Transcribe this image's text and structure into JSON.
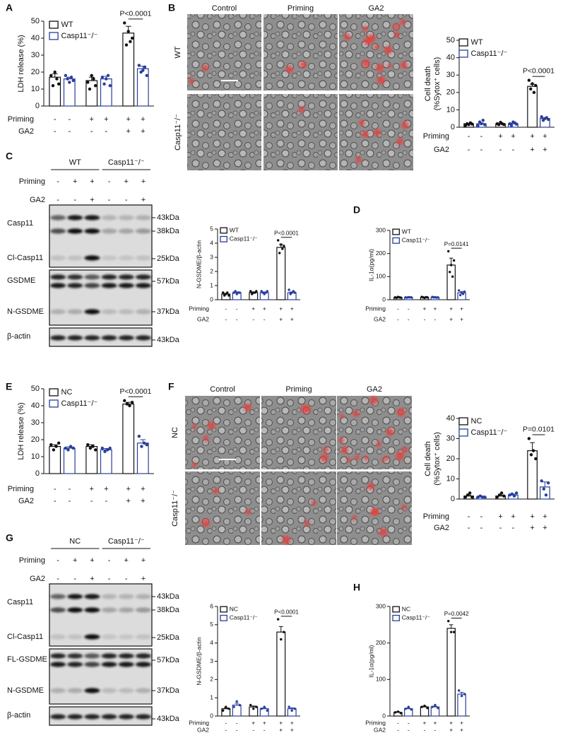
{
  "chart_data": [
    {
      "type": "bar",
      "ylabel": "LDH release (%)",
      "ylim": [
        0,
        50
      ],
      "yticks": [
        0,
        10,
        20,
        30,
        40,
        50
      ],
      "annotation": "P<0.0001",
      "series": [
        {
          "name": "WT",
          "color": "#111111",
          "values": [
            17,
            15,
            43
          ],
          "errors": [
            2,
            2,
            4
          ],
          "points": [
            [
              18,
              12,
              20,
              16,
              13
            ],
            [
              14,
              10,
              18,
              16,
              12
            ],
            [
              49,
              36,
              44,
              38,
              40
            ]
          ]
        },
        {
          "name": "Casp11⁻/⁻",
          "color": "#2a3f9a",
          "values": [
            16,
            16,
            22
          ],
          "errors": [
            1,
            1.5,
            1.5
          ],
          "points": [
            [
              18,
              16,
              14,
              17,
              15
            ],
            [
              17,
              13,
              16,
              18,
              12
            ],
            [
              24,
              20,
              21,
              23,
              18
            ]
          ]
        }
      ],
      "conditions": [
        {
          "name": "Priming",
          "labels": [
            "-",
            "-",
            "+",
            "+",
            "+",
            "+"
          ]
        },
        {
          "name": "GA2",
          "labels": [
            "-",
            "-",
            "-",
            "-",
            "+",
            "+"
          ]
        }
      ]
    },
    {
      "type": "bar",
      "ylabel": [
        "Cell death",
        "(%Sytox⁺ cells)"
      ],
      "ylim": [
        0,
        50
      ],
      "yticks": [
        0,
        10,
        20,
        30,
        40,
        50
      ],
      "annotation": "P<0.0001",
      "series": [
        {
          "name": "WT",
          "color": "#111111",
          "values": [
            2,
            2,
            23.5
          ],
          "errors": [
            0.3,
            0.3,
            1.2
          ],
          "points": [
            [
              1,
              2,
              1.5,
              2.5,
              1.8
            ],
            [
              2,
              1.5,
              2.8,
              2,
              1.6
            ],
            [
              27,
              22,
              25,
              20,
              24
            ]
          ]
        },
        {
          "name": "Casp11⁻/⁻",
          "color": "#2a3f9a",
          "values": [
            2,
            2,
            5
          ],
          "errors": [
            0.5,
            0.4,
            0.4
          ],
          "points": [
            [
              1,
              3,
              2,
              4,
              1.5
            ],
            [
              2,
              1,
              3,
              2.5,
              1.8
            ],
            [
              6,
              4,
              5,
              5.5,
              4.5
            ]
          ]
        }
      ],
      "conditions": [
        {
          "name": "Priming",
          "labels": [
            "-",
            "-",
            "+",
            "+",
            "+",
            "+"
          ]
        },
        {
          "name": "GA2",
          "labels": [
            "-",
            "-",
            "-",
            "-",
            "+",
            "+"
          ]
        }
      ]
    },
    {
      "type": "bar",
      "ylabel": "N-GSDME/β-actin",
      "ylim": [
        0,
        5
      ],
      "yticks": [
        0,
        1,
        2,
        3,
        4,
        5
      ],
      "annotation": "P<0.0001",
      "series": [
        {
          "name": "WT",
          "color": "#111111",
          "values": [
            0.4,
            0.5,
            3.7
          ],
          "errors": [
            0.05,
            0.05,
            0.2
          ],
          "points": [
            [
              0.5,
              0.3,
              0.4,
              0.5,
              0.3
            ],
            [
              0.6,
              0.4,
              0.5,
              0.5,
              0.6
            ],
            [
              4.2,
              3.3,
              3.9,
              3.6,
              3.8
            ]
          ]
        },
        {
          "name": "Casp11⁻/⁻",
          "color": "#2a3f9a",
          "values": [
            0.5,
            0.5,
            0.5
          ],
          "errors": [
            0.05,
            0.05,
            0.05
          ],
          "points": [
            [
              0.5,
              0.6,
              0.4,
              0.5,
              0.5
            ],
            [
              0.6,
              0.5,
              0.4,
              0.5,
              0.6
            ],
            [
              0.7,
              0.4,
              0.5,
              0.6,
              0.5
            ]
          ]
        }
      ],
      "conditions": [
        {
          "name": "Priming",
          "labels": [
            "-",
            "-",
            "+",
            "+",
            "+",
            "+"
          ]
        },
        {
          "name": "GA2",
          "labels": [
            "-",
            "-",
            "-",
            "-",
            "+",
            "+"
          ]
        }
      ]
    },
    {
      "type": "bar",
      "ylabel": "IL-1α(pg/ml)",
      "ylim": [
        0,
        300
      ],
      "yticks": [
        0,
        100,
        200,
        300
      ],
      "annotation": "P=0.0141",
      "series": [
        {
          "name": "WT",
          "color": "#111111",
          "values": [
            10,
            10,
            150
          ],
          "errors": [
            1,
            1,
            30
          ],
          "points": [
            [
              10,
              8,
              12,
              10,
              9
            ],
            [
              12,
              10,
              8,
              11,
              10
            ],
            [
              210,
              120,
              150,
              100,
              170
            ]
          ]
        },
        {
          "name": "Casp11⁻/⁻",
          "color": "#2a3f9a",
          "values": [
            10,
            10,
            30
          ],
          "errors": [
            1,
            1,
            5
          ],
          "points": [
            [
              10,
              9,
              11,
              10,
              10
            ],
            [
              12,
              10,
              11,
              9,
              10
            ],
            [
              40,
              20,
              30,
              25,
              35
            ]
          ]
        }
      ],
      "conditions": [
        {
          "name": "Priming",
          "labels": [
            "-",
            "-",
            "+",
            "+",
            "+",
            "+"
          ]
        },
        {
          "name": "GA2",
          "labels": [
            "-",
            "-",
            "-",
            "-",
            "+",
            "+"
          ]
        }
      ]
    },
    {
      "type": "bar",
      "ylabel": "LDH release (%)",
      "ylim": [
        0,
        50
      ],
      "yticks": [
        0,
        10,
        20,
        30,
        40,
        50
      ],
      "annotation": "P<0.0001",
      "series": [
        {
          "name": "NC",
          "color": "#111111",
          "values": [
            16,
            16,
            41
          ],
          "errors": [
            1,
            1,
            1
          ],
          "points": [
            [
              17,
              14,
              16,
              18
            ],
            [
              17,
              15,
              16,
              14
            ],
            [
              43,
              41,
              40,
              42
            ]
          ]
        },
        {
          "name": "Casp11⁻/⁻",
          "color": "#2a3f9a",
          "values": [
            15,
            14,
            18
          ],
          "errors": [
            0.8,
            0.8,
            2
          ],
          "points": [
            [
              15,
              14,
              16,
              15
            ],
            [
              15,
              13,
              14,
              15
            ],
            [
              22,
              16,
              18,
              17
            ]
          ]
        }
      ],
      "conditions": [
        {
          "name": "Priming",
          "labels": [
            "-",
            "-",
            "+",
            "+",
            "+",
            "+"
          ]
        },
        {
          "name": "GA2",
          "labels": [
            "-",
            "-",
            "-",
            "-",
            "+",
            "+"
          ]
        }
      ]
    },
    {
      "type": "bar",
      "ylabel": [
        "Cell death",
        "(%Sytox⁺ cells)"
      ],
      "ylim": [
        0,
        40
      ],
      "yticks": [
        0,
        10,
        20,
        30,
        40
      ],
      "annotation": "P=0.0101",
      "series": [
        {
          "name": "NC",
          "color": "#111111",
          "values": [
            1.5,
            1.5,
            24
          ],
          "errors": [
            0.5,
            0.5,
            4
          ],
          "points": [
            [
              1,
              2,
              3,
              1
            ],
            [
              1,
              2,
              3,
              1.5
            ],
            [
              30,
              22,
              24,
              20
            ]
          ]
        },
        {
          "name": "Casp11⁻/⁻",
          "color": "#2a3f9a",
          "values": [
            1,
            2,
            6
          ],
          "errors": [
            0.2,
            0.5,
            2.5
          ],
          "points": [
            [
              1,
              1.5,
              1,
              1
            ],
            [
              2,
              2.5,
              1.5,
              3
            ],
            [
              9,
              5,
              2,
              8
            ]
          ]
        }
      ],
      "conditions": [
        {
          "name": "Priming",
          "labels": [
            "-",
            "-",
            "+",
            "+",
            "+",
            "+"
          ]
        },
        {
          "name": "GA2",
          "labels": [
            "-",
            "-",
            "-",
            "-",
            "+",
            "+"
          ]
        }
      ]
    },
    {
      "type": "bar",
      "ylabel": "N-GSDME/β-actin",
      "ylim": [
        0,
        6
      ],
      "yticks": [
        0,
        1,
        2,
        3,
        4,
        5,
        6
      ],
      "annotation": "P<0.0001",
      "series": [
        {
          "name": "NC",
          "color": "#111111",
          "values": [
            0.4,
            0.5,
            4.6
          ],
          "errors": [
            0.05,
            0.05,
            0.3
          ],
          "points": [
            [
              0.3,
              0.5,
              0.4
            ],
            [
              0.6,
              0.4,
              0.5
            ],
            [
              5.3,
              4.2,
              4.6
            ]
          ]
        },
        {
          "name": "Casp11⁻/⁻",
          "color": "#2a3f9a",
          "values": [
            0.6,
            0.4,
            0.4
          ],
          "errors": [
            0.1,
            0.05,
            0.05
          ],
          "points": [
            [
              0.5,
              0.8,
              0.6
            ],
            [
              0.4,
              0.5,
              0.3
            ],
            [
              0.5,
              0.3,
              0.4
            ]
          ]
        }
      ],
      "conditions": [
        {
          "name": "Priming",
          "labels": [
            "-",
            "-",
            "+",
            "+",
            "+",
            "+"
          ]
        },
        {
          "name": "GA2",
          "labels": [
            "-",
            "-",
            "-",
            "-",
            "+",
            "+"
          ]
        }
      ]
    },
    {
      "type": "bar",
      "ylabel": "IL-1α(pg/ml)",
      "ylim": [
        0,
        300
      ],
      "yticks": [
        0,
        100,
        200,
        300
      ],
      "annotation": "P=0.0042",
      "series": [
        {
          "name": "NC",
          "color": "#111111",
          "values": [
            10,
            25,
            240
          ],
          "errors": [
            2,
            2,
            10
          ],
          "points": [
            [
              10,
              12,
              8
            ],
            [
              25,
              28,
              22
            ],
            [
              260,
              230,
              230
            ]
          ]
        },
        {
          "name": "Casp11⁻/⁻",
          "color": "#2a3f9a",
          "values": [
            20,
            25,
            60
          ],
          "errors": [
            2,
            2,
            5
          ],
          "points": [
            [
              20,
              25,
              18
            ],
            [
              25,
              30,
              22
            ],
            [
              70,
              55,
              60
            ]
          ]
        }
      ],
      "conditions": [
        {
          "name": "Priming",
          "labels": [
            "-",
            "-",
            "+",
            "+",
            "+",
            "+"
          ]
        },
        {
          "name": "GA2",
          "labels": [
            "-",
            "-",
            "-",
            "-",
            "+",
            "+"
          ]
        }
      ]
    }
  ],
  "figure": {
    "panel_labels": [
      "A",
      "B",
      "C",
      "D",
      "E",
      "F",
      "G",
      "H"
    ],
    "micrographs": [
      {
        "columns": [
          "Control",
          "Priming",
          "GA2"
        ],
        "rows": [
          "WT",
          "Casp11⁻/⁻"
        ]
      },
      {
        "columns": [
          "Control",
          "Priming",
          "GA2"
        ],
        "rows": [
          "NC",
          "Casp11⁻/⁻"
        ]
      }
    ],
    "blots": [
      {
        "groups": [
          "WT",
          "Casp11⁻/⁻"
        ],
        "conditions": [
          {
            "name": "Priming",
            "labels": [
              "-",
              "+",
              "+",
              "-",
              "+",
              "+"
            ]
          },
          {
            "name": "GA2",
            "labels": [
              "-",
              "-",
              "+",
              "-",
              "-",
              "+"
            ]
          }
        ],
        "bands": [
          "Casp11",
          "Cl-Casp11",
          "GSDME",
          "N-GSDME",
          "β-actin"
        ],
        "markers": [
          "43kDa",
          "38kDa",
          "25kDa",
          "57kDa",
          "37kDa",
          "43kDa"
        ]
      },
      {
        "groups": [
          "NC",
          "Casp11⁻/⁻"
        ],
        "conditions": [
          {
            "name": "Priming",
            "labels": [
              "-",
              "+",
              "+",
              "-",
              "+",
              "+"
            ]
          },
          {
            "name": "GA2",
            "labels": [
              "-",
              "-",
              "+",
              "-",
              "-",
              "+"
            ]
          }
        ],
        "bands": [
          "Casp11",
          "Cl-Casp11",
          "FL-GSDME",
          "N-GSDME",
          "β-actin"
        ],
        "markers": [
          "43kDa",
          "38kDa",
          "25kDa",
          "57kDa",
          "37kDa",
          "43kDa"
        ]
      }
    ]
  }
}
